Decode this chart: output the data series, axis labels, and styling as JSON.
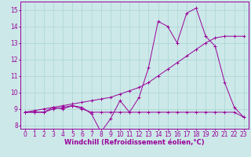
{
  "x": [
    0,
    1,
    2,
    3,
    4,
    5,
    6,
    7,
    8,
    9,
    10,
    11,
    12,
    13,
    14,
    15,
    16,
    17,
    18,
    19,
    20,
    21,
    22,
    23
  ],
  "line1": [
    8.8,
    8.8,
    8.8,
    9.1,
    9.0,
    9.2,
    9.1,
    8.7,
    7.6,
    8.4,
    9.5,
    8.8,
    9.7,
    11.5,
    14.3,
    14.0,
    13.0,
    14.8,
    15.1,
    13.4,
    12.8,
    10.6,
    9.1,
    8.5
  ],
  "line2": [
    8.8,
    8.8,
    8.8,
    9.0,
    9.1,
    9.2,
    9.0,
    8.8,
    8.8,
    8.8,
    8.8,
    8.8,
    8.8,
    8.8,
    8.8,
    8.8,
    8.8,
    8.8,
    8.8,
    8.8,
    8.8,
    8.8,
    8.8,
    8.5
  ],
  "line3": [
    8.8,
    8.9,
    9.0,
    9.1,
    9.2,
    9.3,
    9.4,
    9.5,
    9.6,
    9.7,
    9.9,
    10.1,
    10.3,
    10.6,
    11.0,
    11.4,
    11.8,
    12.2,
    12.6,
    13.0,
    13.3,
    13.4,
    13.4,
    13.4
  ],
  "color": "#990099",
  "bg_color": "#cce8e8",
  "grid_color": "#aad4d4",
  "xlabel": "Windchill (Refroidissement éolien,°C)",
  "ylabel_ticks": [
    8,
    9,
    10,
    11,
    12,
    13,
    14,
    15
  ],
  "xlim": [
    -0.5,
    23.5
  ],
  "ylim": [
    7.8,
    15.5
  ],
  "xlabel_fontsize": 6,
  "tick_fontsize": 5.5
}
